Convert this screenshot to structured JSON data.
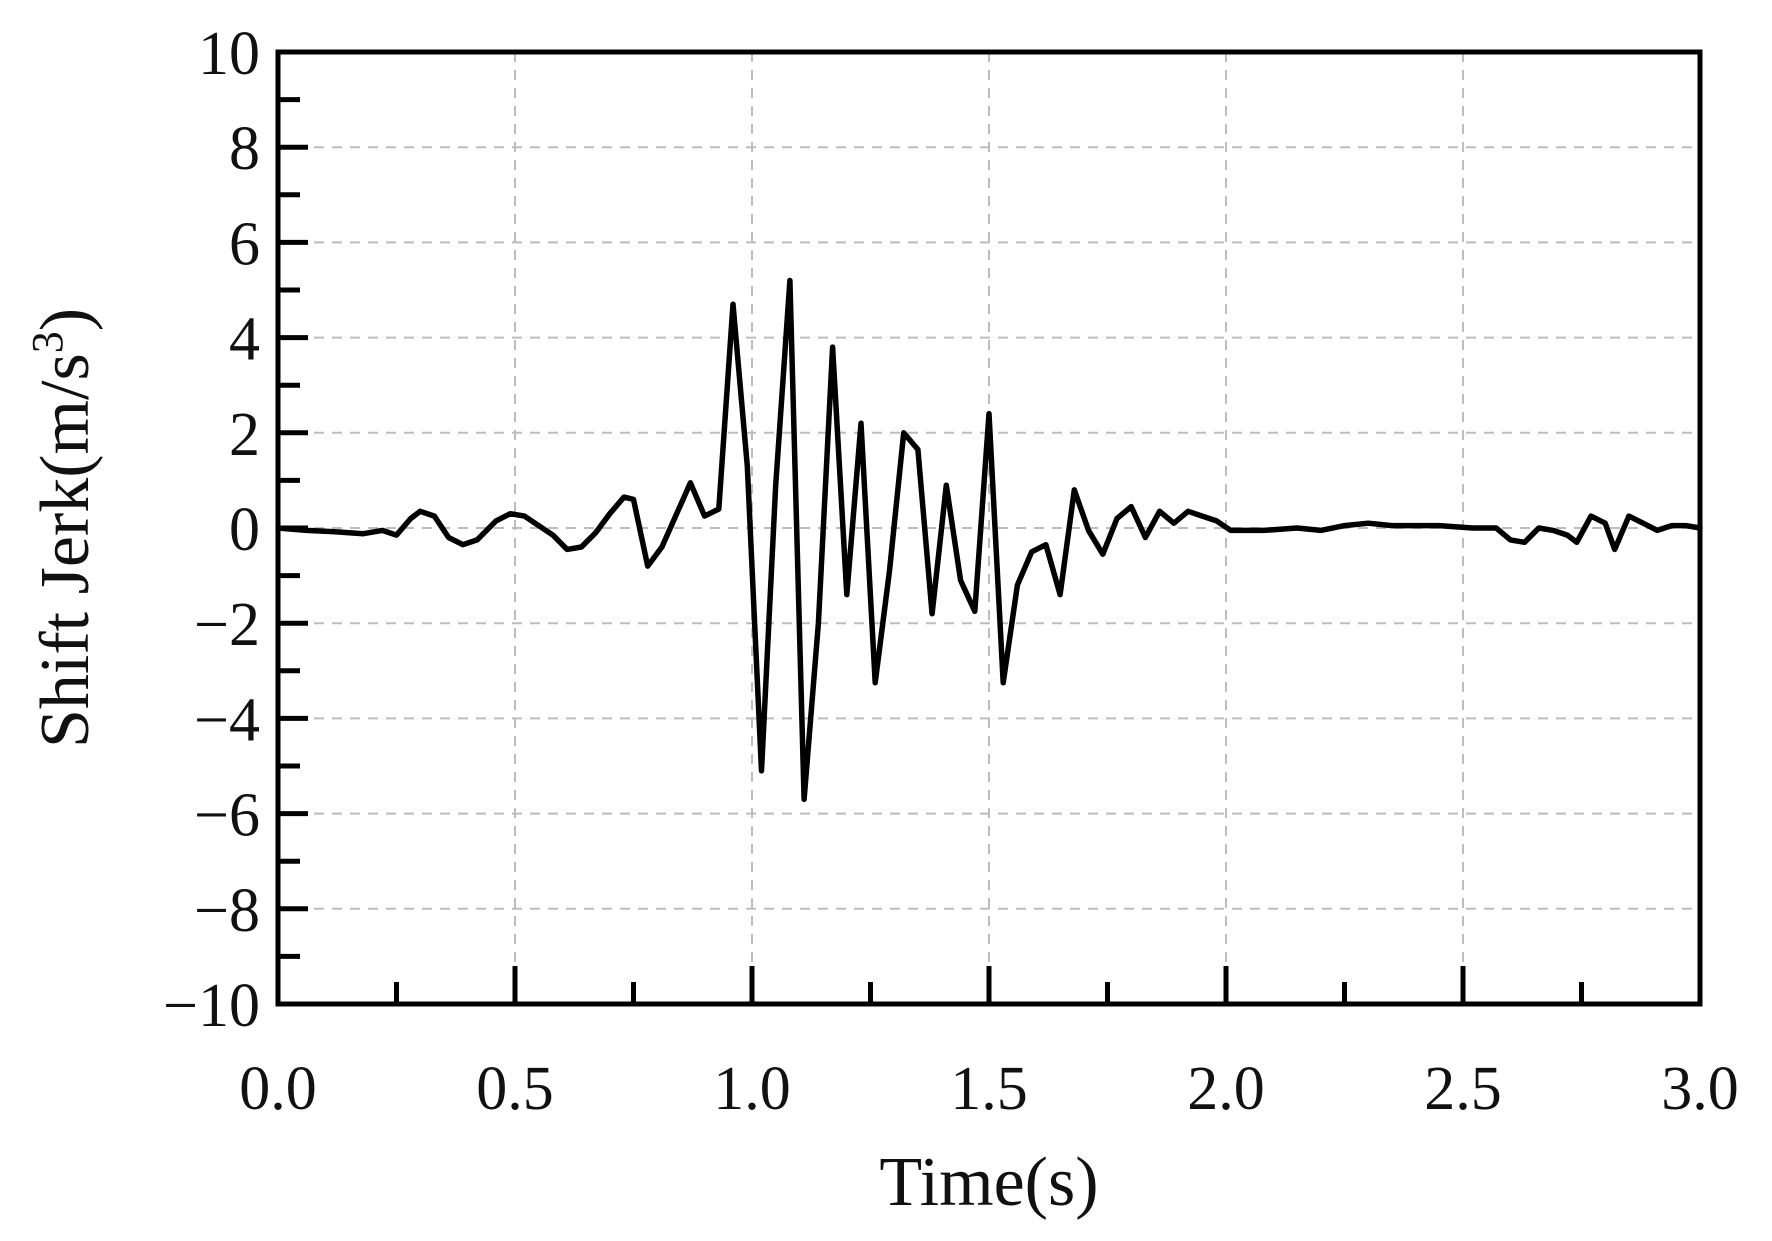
{
  "chart_data": {
    "type": "line",
    "title": "",
    "xlabel": "Time(s)",
    "ylabel_text": "Shift Jerk(m/s",
    "ylabel_superscript": "3",
    "ylabel_close": ")",
    "xlim": [
      0,
      3
    ],
    "ylim": [
      -10,
      10
    ],
    "grid": true,
    "x_tick_labels": [
      "0.0",
      "0.5",
      "1.0",
      "1.5",
      "2.0",
      "2.5",
      "3.0"
    ],
    "y_tick_labels": [
      "10",
      "8",
      "6",
      "4",
      "2",
      "0",
      "−2",
      "−4",
      "−6",
      "−8",
      "−10"
    ],
    "series": [
      {
        "color": "#000000",
        "points": [
          [
            0.0,
            0.0
          ],
          [
            0.06,
            -0.05
          ],
          [
            0.12,
            -0.08
          ],
          [
            0.18,
            -0.12
          ],
          [
            0.22,
            -0.05
          ],
          [
            0.25,
            -0.15
          ],
          [
            0.28,
            0.2
          ],
          [
            0.3,
            0.35
          ],
          [
            0.33,
            0.25
          ],
          [
            0.36,
            -0.2
          ],
          [
            0.39,
            -0.35
          ],
          [
            0.42,
            -0.25
          ],
          [
            0.46,
            0.15
          ],
          [
            0.49,
            0.3
          ],
          [
            0.52,
            0.25
          ],
          [
            0.55,
            0.05
          ],
          [
            0.58,
            -0.15
          ],
          [
            0.61,
            -0.45
          ],
          [
            0.64,
            -0.4
          ],
          [
            0.67,
            -0.1
          ],
          [
            0.7,
            0.3
          ],
          [
            0.73,
            0.65
          ],
          [
            0.75,
            0.6
          ],
          [
            0.78,
            -0.8
          ],
          [
            0.81,
            -0.4
          ],
          [
            0.85,
            0.5
          ],
          [
            0.87,
            0.95
          ],
          [
            0.9,
            0.25
          ],
          [
            0.93,
            0.4
          ],
          [
            0.96,
            4.7
          ],
          [
            0.99,
            1.3
          ],
          [
            1.02,
            -5.1
          ],
          [
            1.05,
            0.9
          ],
          [
            1.08,
            5.2
          ],
          [
            1.11,
            -5.7
          ],
          [
            1.14,
            -2.0
          ],
          [
            1.17,
            3.8
          ],
          [
            1.2,
            -1.4
          ],
          [
            1.23,
            2.2
          ],
          [
            1.26,
            -3.25
          ],
          [
            1.29,
            -0.9
          ],
          [
            1.32,
            2.0
          ],
          [
            1.35,
            1.65
          ],
          [
            1.38,
            -1.8
          ],
          [
            1.41,
            0.9
          ],
          [
            1.44,
            -1.1
          ],
          [
            1.47,
            -1.75
          ],
          [
            1.5,
            2.4
          ],
          [
            1.53,
            -3.25
          ],
          [
            1.56,
            -1.2
          ],
          [
            1.59,
            -0.5
          ],
          [
            1.62,
            -0.35
          ],
          [
            1.65,
            -1.4
          ],
          [
            1.68,
            0.8
          ],
          [
            1.71,
            -0.05
          ],
          [
            1.74,
            -0.55
          ],
          [
            1.77,
            0.2
          ],
          [
            1.8,
            0.45
          ],
          [
            1.83,
            -0.2
          ],
          [
            1.86,
            0.35
          ],
          [
            1.89,
            0.1
          ],
          [
            1.92,
            0.35
          ],
          [
            1.95,
            0.25
          ],
          [
            1.98,
            0.15
          ],
          [
            2.01,
            -0.05
          ],
          [
            2.08,
            -0.05
          ],
          [
            2.15,
            0.0
          ],
          [
            2.2,
            -0.05
          ],
          [
            2.25,
            0.05
          ],
          [
            2.3,
            0.1
          ],
          [
            2.35,
            0.05
          ],
          [
            2.45,
            0.05
          ],
          [
            2.52,
            0.0
          ],
          [
            2.57,
            0.0
          ],
          [
            2.6,
            -0.25
          ],
          [
            2.63,
            -0.3
          ],
          [
            2.66,
            0.0
          ],
          [
            2.69,
            -0.05
          ],
          [
            2.72,
            -0.15
          ],
          [
            2.74,
            -0.3
          ],
          [
            2.77,
            0.25
          ],
          [
            2.8,
            0.1
          ],
          [
            2.82,
            -0.45
          ],
          [
            2.85,
            0.25
          ],
          [
            2.88,
            0.1
          ],
          [
            2.91,
            -0.05
          ],
          [
            2.94,
            0.05
          ],
          [
            2.97,
            0.05
          ],
          [
            3.0,
            0.0
          ]
        ]
      }
    ]
  }
}
